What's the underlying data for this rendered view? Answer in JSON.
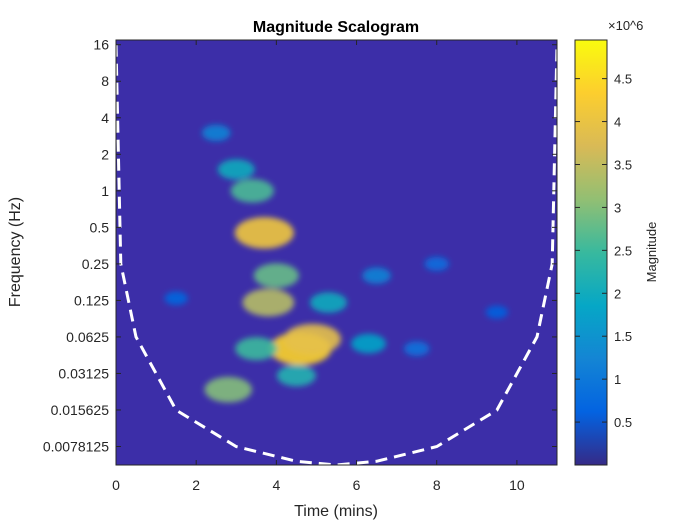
{
  "chart_data": {
    "type": "heatmap",
    "title": "Magnitude Scalogram",
    "xlabel": "Time (mins)",
    "ylabel": "Frequency (Hz)",
    "xlim": [
      0,
      11
    ],
    "x_ticks": [
      0,
      2,
      4,
      6,
      8,
      10
    ],
    "y_scale": "log2",
    "ylim": [
      0.0055,
      17.5
    ],
    "y_ticks": [
      16,
      8,
      4,
      2,
      1,
      0.5,
      0.25,
      0.125,
      0.0625,
      0.03125,
      0.015625,
      0.0078125
    ],
    "y_tick_labels": [
      "16",
      "8",
      "4",
      "2",
      "1",
      "0.5",
      "0.25",
      "0.125",
      "0.0625",
      "0.03125",
      "0.015625",
      "0.0078125"
    ],
    "colormap": "parula",
    "background_color": "#3c2ea8",
    "colorbar": {
      "label": "Magnitude",
      "multiplier": "×10^6",
      "range": [
        0,
        4.95
      ],
      "ticks": [
        0.5,
        1,
        1.5,
        2,
        2.5,
        3,
        3.5,
        4,
        4.5
      ],
      "tick_labels": [
        "0.5",
        "1",
        "1.5",
        "2",
        "2.5",
        "3",
        "3.5",
        "4",
        "4.5"
      ]
    },
    "cone_of_influence": {
      "style": "white dashed",
      "points": [
        {
          "x": 0.0,
          "y": 16
        },
        {
          "x": 0.12,
          "y": 0.25
        },
        {
          "x": 0.5,
          "y": 0.0625
        },
        {
          "x": 1.5,
          "y": 0.0156
        },
        {
          "x": 3.0,
          "y": 0.0078
        },
        {
          "x": 4.5,
          "y": 0.0059
        },
        {
          "x": 5.5,
          "y": 0.0055
        },
        {
          "x": 6.5,
          "y": 0.0059
        },
        {
          "x": 8.0,
          "y": 0.0078
        },
        {
          "x": 9.5,
          "y": 0.0156
        },
        {
          "x": 10.5,
          "y": 0.0625
        },
        {
          "x": 10.88,
          "y": 0.25
        },
        {
          "x": 11.0,
          "y": 16
        }
      ]
    },
    "energy_regions": [
      {
        "x": 4.6,
        "y": 0.05,
        "value": 4.4
      },
      {
        "x": 4.9,
        "y": 0.06,
        "value": 3.9
      },
      {
        "x": 3.7,
        "y": 0.45,
        "value": 4.1
      },
      {
        "x": 3.8,
        "y": 0.12,
        "value": 3.4
      },
      {
        "x": 4.0,
        "y": 0.2,
        "value": 2.8
      },
      {
        "x": 3.4,
        "y": 1.0,
        "value": 2.6
      },
      {
        "x": 3.0,
        "y": 1.5,
        "value": 2.0
      },
      {
        "x": 2.8,
        "y": 0.023,
        "value": 3.0
      },
      {
        "x": 3.5,
        "y": 0.05,
        "value": 2.5
      },
      {
        "x": 5.3,
        "y": 0.12,
        "value": 2.0
      },
      {
        "x": 6.3,
        "y": 0.055,
        "value": 1.8
      },
      {
        "x": 6.5,
        "y": 0.2,
        "value": 1.2
      },
      {
        "x": 2.5,
        "y": 3.0,
        "value": 1.2
      },
      {
        "x": 4.5,
        "y": 0.03,
        "value": 2.2
      },
      {
        "x": 8.0,
        "y": 0.25,
        "value": 0.8
      },
      {
        "x": 1.5,
        "y": 0.13,
        "value": 0.7
      },
      {
        "x": 9.5,
        "y": 0.1,
        "value": 0.6
      },
      {
        "x": 7.5,
        "y": 0.05,
        "value": 0.9
      }
    ]
  }
}
